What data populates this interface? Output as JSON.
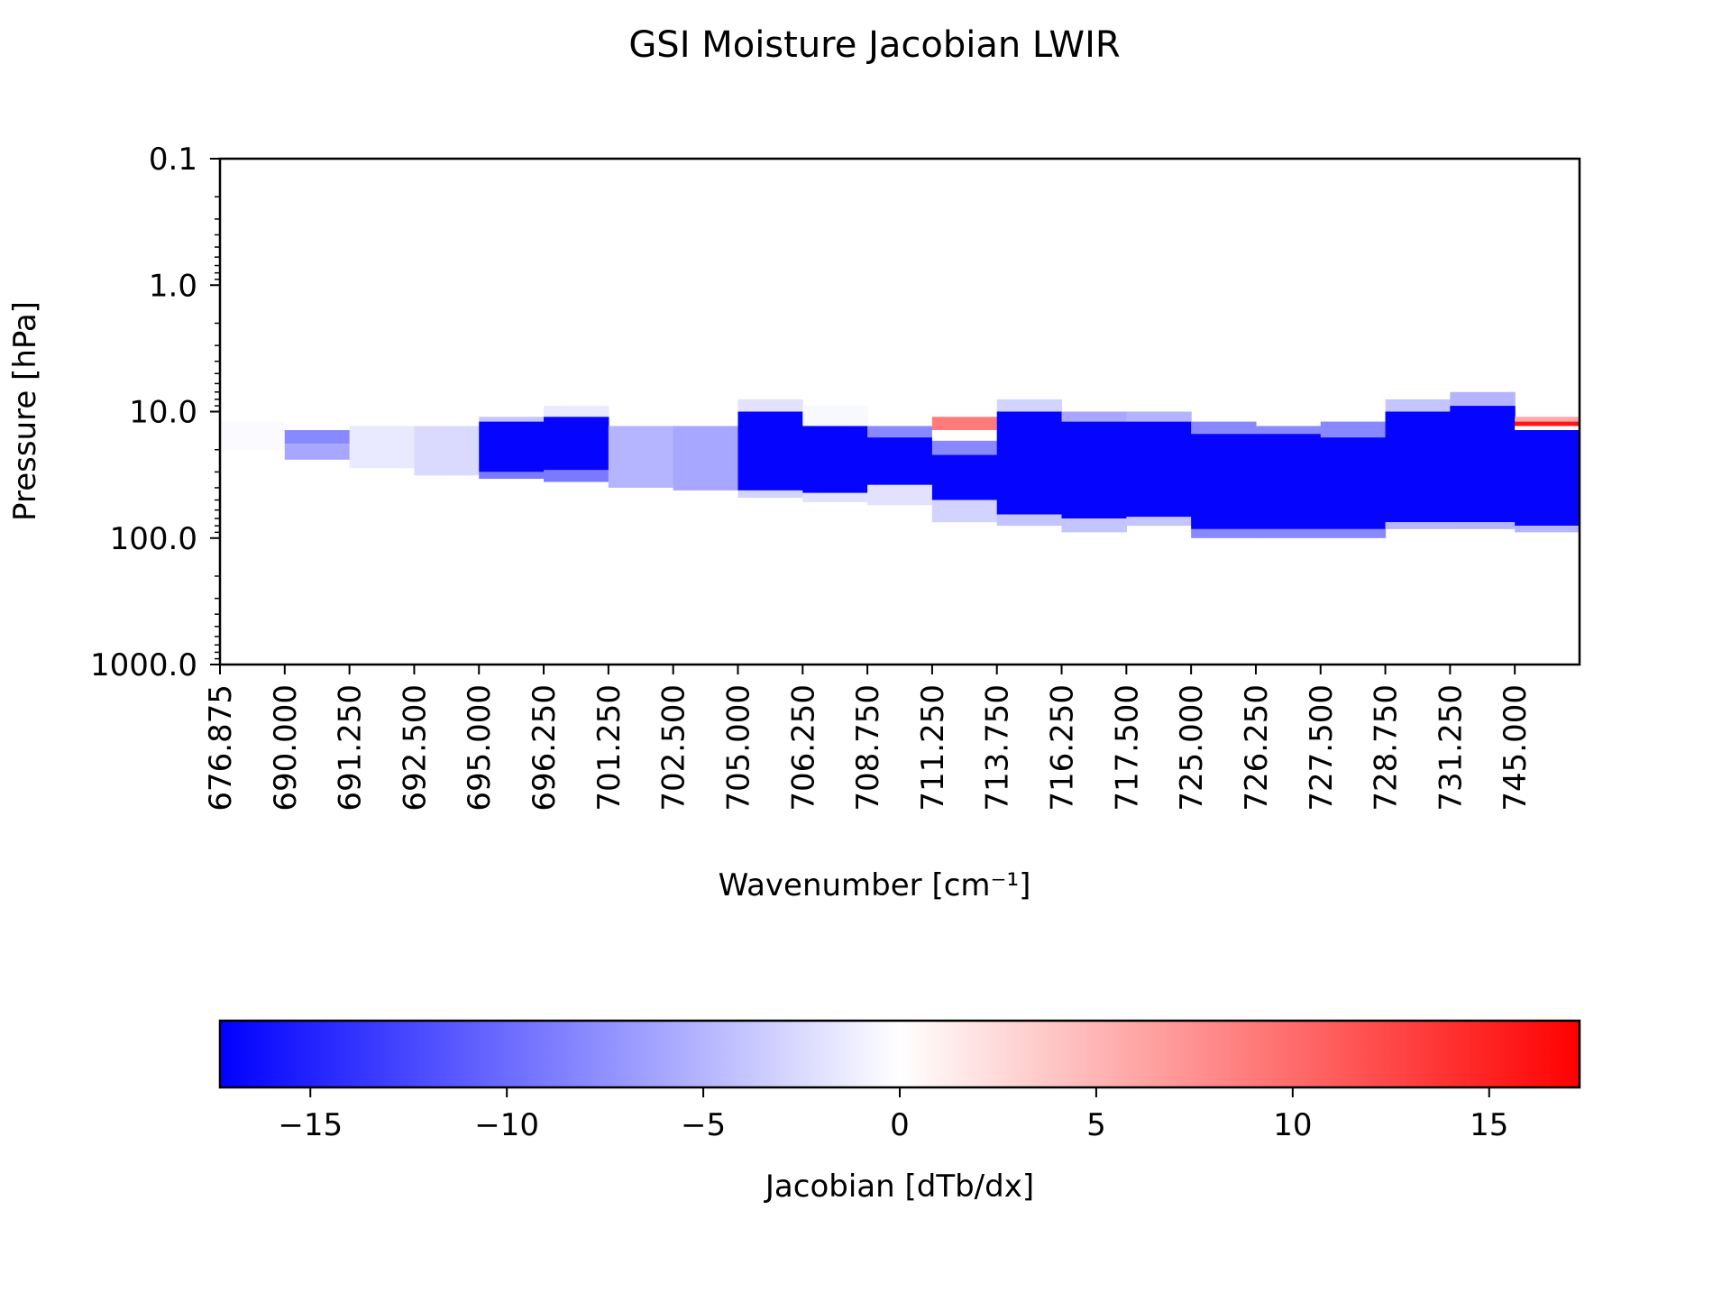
{
  "chart_data": {
    "type": "heatmap",
    "title": "GSI Moisture Jacobian LWIR",
    "xlabel": "Wavenumber [cm⁻¹]",
    "ylabel": "Pressure [hPa]",
    "y_scale": "log",
    "y_inverted": true,
    "ylim": [
      1000.0,
      0.1
    ],
    "x_tick_labels": [
      "676.875",
      "690.000",
      "691.250",
      "692.500",
      "695.000",
      "696.250",
      "701.250",
      "702.500",
      "705.000",
      "706.250",
      "708.750",
      "711.250",
      "713.750",
      "716.250",
      "717.500",
      "725.000",
      "726.250",
      "727.500",
      "728.750",
      "731.250",
      "745.000"
    ],
    "y_tick_labels": [
      "0.1",
      "1.0",
      "10.0",
      "100.0",
      "1000.0"
    ],
    "y_tick_values": [
      0.1,
      1.0,
      10.0,
      100.0,
      1000.0
    ],
    "colormap": "bwr",
    "color_min": "#0000ff",
    "color_mid": "#ffffff",
    "color_max": "#ff0000",
    "colorbar": {
      "label": "Jacobian [dTb/dx]",
      "range": [
        -17.3,
        17.3
      ],
      "tick_values": [
        -15,
        -10,
        -5,
        0,
        5,
        10,
        15
      ],
      "tick_labels": [
        "−15",
        "−10",
        "−5",
        "0",
        "5",
        "10",
        "15"
      ],
      "placement": "bottom"
    },
    "columns": [
      {
        "bands": [
          {
            "p_top": 12,
            "p_bottom": 20,
            "value": -0.3
          }
        ]
      },
      {
        "bands": [
          {
            "p_top": 14,
            "p_bottom": 18,
            "value": -8
          },
          {
            "p_top": 18,
            "p_bottom": 24,
            "value": -6
          }
        ]
      },
      {
        "bands": [
          {
            "p_top": 13,
            "p_bottom": 28,
            "value": -1.5
          }
        ]
      },
      {
        "bands": [
          {
            "p_top": 13,
            "p_bottom": 32,
            "value": -2.5
          }
        ]
      },
      {
        "bands": [
          {
            "p_top": 11,
            "p_bottom": 12,
            "value": -4
          },
          {
            "p_top": 12,
            "p_bottom": 30,
            "value": -17
          },
          {
            "p_top": 30,
            "p_bottom": 34,
            "value": -9
          }
        ]
      },
      {
        "bands": [
          {
            "p_top": 9,
            "p_bottom": 11,
            "value": -1.5
          },
          {
            "p_top": 11,
            "p_bottom": 29,
            "value": -17
          },
          {
            "p_top": 29,
            "p_bottom": 36,
            "value": -9
          }
        ]
      },
      {
        "bands": [
          {
            "p_top": 13,
            "p_bottom": 40,
            "value": -5
          }
        ]
      },
      {
        "bands": [
          {
            "p_top": 13,
            "p_bottom": 42,
            "value": -6
          }
        ]
      },
      {
        "bands": [
          {
            "p_top": 8,
            "p_bottom": 10,
            "value": -2
          },
          {
            "p_top": 10,
            "p_bottom": 42,
            "value": -17
          },
          {
            "p_top": 42,
            "p_bottom": 48,
            "value": -3
          }
        ]
      },
      {
        "bands": [
          {
            "p_top": 9,
            "p_bottom": 13,
            "value": -0.5
          },
          {
            "p_top": 13,
            "p_bottom": 44,
            "value": -17
          },
          {
            "p_top": 44,
            "p_bottom": 52,
            "value": -2
          }
        ]
      },
      {
        "bands": [
          {
            "p_top": 13,
            "p_bottom": 16,
            "value": -8
          },
          {
            "p_top": 16,
            "p_bottom": 38,
            "value": -17
          },
          {
            "p_top": 38,
            "p_bottom": 55,
            "value": -2
          }
        ]
      },
      {
        "bands": [
          {
            "p_top": 11,
            "p_bottom": 14,
            "value": 9
          },
          {
            "p_top": 14,
            "p_bottom": 17,
            "value": 0
          },
          {
            "p_top": 17,
            "p_bottom": 22,
            "value": -8
          },
          {
            "p_top": 22,
            "p_bottom": 50,
            "value": -17
          },
          {
            "p_top": 50,
            "p_bottom": 75,
            "value": -3
          }
        ]
      },
      {
        "bands": [
          {
            "p_top": 8,
            "p_bottom": 10,
            "value": -3
          },
          {
            "p_top": 10,
            "p_bottom": 65,
            "value": -17
          },
          {
            "p_top": 65,
            "p_bottom": 80,
            "value": -4
          }
        ]
      },
      {
        "bands": [
          {
            "p_top": 10,
            "p_bottom": 12,
            "value": -6
          },
          {
            "p_top": 12,
            "p_bottom": 70,
            "value": -17
          },
          {
            "p_top": 70,
            "p_bottom": 90,
            "value": -4
          }
        ]
      },
      {
        "bands": [
          {
            "p_top": 10,
            "p_bottom": 12,
            "value": -5
          },
          {
            "p_top": 12,
            "p_bottom": 68,
            "value": -17
          },
          {
            "p_top": 68,
            "p_bottom": 80,
            "value": -4
          }
        ]
      },
      {
        "bands": [
          {
            "p_top": 12,
            "p_bottom": 15,
            "value": -8
          },
          {
            "p_top": 15,
            "p_bottom": 85,
            "value": -17
          },
          {
            "p_top": 85,
            "p_bottom": 100,
            "value": -8
          }
        ]
      },
      {
        "bands": [
          {
            "p_top": 13,
            "p_bottom": 15,
            "value": -8
          },
          {
            "p_top": 15,
            "p_bottom": 85,
            "value": -17
          },
          {
            "p_top": 85,
            "p_bottom": 100,
            "value": -8
          }
        ]
      },
      {
        "bands": [
          {
            "p_top": 12,
            "p_bottom": 16,
            "value": -8
          },
          {
            "p_top": 16,
            "p_bottom": 85,
            "value": -17
          },
          {
            "p_top": 85,
            "p_bottom": 100,
            "value": -8
          }
        ]
      },
      {
        "bands": [
          {
            "p_top": 8,
            "p_bottom": 10,
            "value": -4
          },
          {
            "p_top": 10,
            "p_bottom": 75,
            "value": -17
          },
          {
            "p_top": 75,
            "p_bottom": 85,
            "value": -5
          }
        ]
      },
      {
        "bands": [
          {
            "p_top": 7,
            "p_bottom": 9,
            "value": -5
          },
          {
            "p_top": 9,
            "p_bottom": 75,
            "value": -17
          },
          {
            "p_top": 75,
            "p_bottom": 85,
            "value": -5
          }
        ]
      },
      {
        "bands": [
          {
            "p_top": 11,
            "p_bottom": 12,
            "value": 6
          },
          {
            "p_top": 12,
            "p_bottom": 13,
            "value": 16
          },
          {
            "p_top": 13,
            "p_bottom": 14,
            "value": 0
          },
          {
            "p_top": 14,
            "p_bottom": 80,
            "value": -17
          },
          {
            "p_top": 80,
            "p_bottom": 90,
            "value": -5
          }
        ]
      }
    ]
  }
}
